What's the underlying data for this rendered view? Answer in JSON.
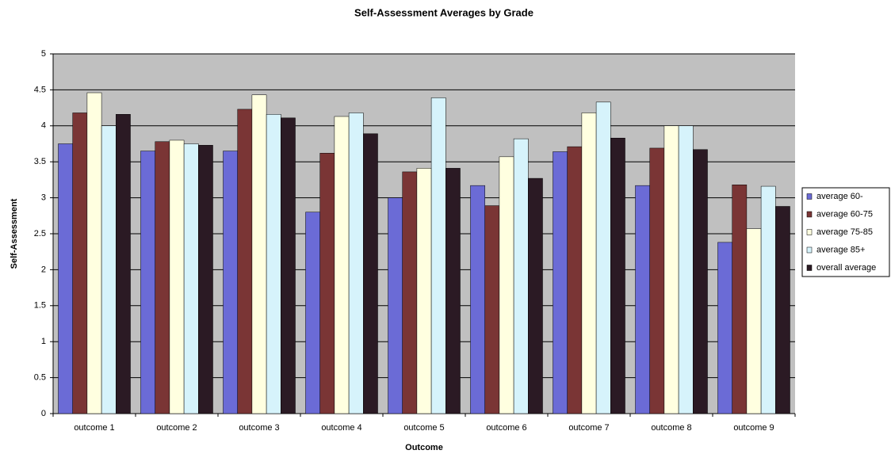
{
  "chart_data": {
    "type": "bar",
    "title": "Self-Assessment Averages by Grade",
    "x_label": "Outcome",
    "y_label": "Self-Assessment",
    "categories": [
      "outcome 1",
      "outcome 2",
      "outcome 3",
      "outcome 4",
      "outcome 5",
      "outcome 6",
      "outcome 7",
      "outcome 8",
      "outcome 9"
    ],
    "series": [
      {
        "name": "average 60-",
        "color": "#6b6bd6",
        "values": [
          3.75,
          3.65,
          3.65,
          2.8,
          3.0,
          3.17,
          3.64,
          3.17,
          2.38
        ]
      },
      {
        "name": "average 60-75",
        "color": "#7a3535",
        "values": [
          4.18,
          3.78,
          4.23,
          3.62,
          3.36,
          2.89,
          3.71,
          3.69,
          3.18
        ]
      },
      {
        "name": "average 75-85",
        "color": "#ffffe0",
        "values": [
          4.46,
          3.8,
          4.43,
          4.13,
          3.41,
          3.57,
          4.18,
          4.0,
          2.57
        ]
      },
      {
        "name": "average 85+",
        "color": "#d6f3fb",
        "values": [
          4.0,
          3.75,
          4.16,
          4.18,
          4.39,
          3.82,
          4.33,
          4.0,
          3.16
        ]
      },
      {
        "name": "overall average",
        "color": "#2b1a24",
        "values": [
          4.16,
          3.73,
          4.11,
          3.89,
          3.41,
          3.27,
          3.83,
          3.67,
          2.88
        ]
      }
    ],
    "ylim": [
      0,
      5
    ],
    "yticks": [
      0,
      0.5,
      1,
      1.5,
      2,
      2.5,
      3,
      3.5,
      4,
      4.5,
      5
    ],
    "grid": true,
    "legend": "right"
  }
}
